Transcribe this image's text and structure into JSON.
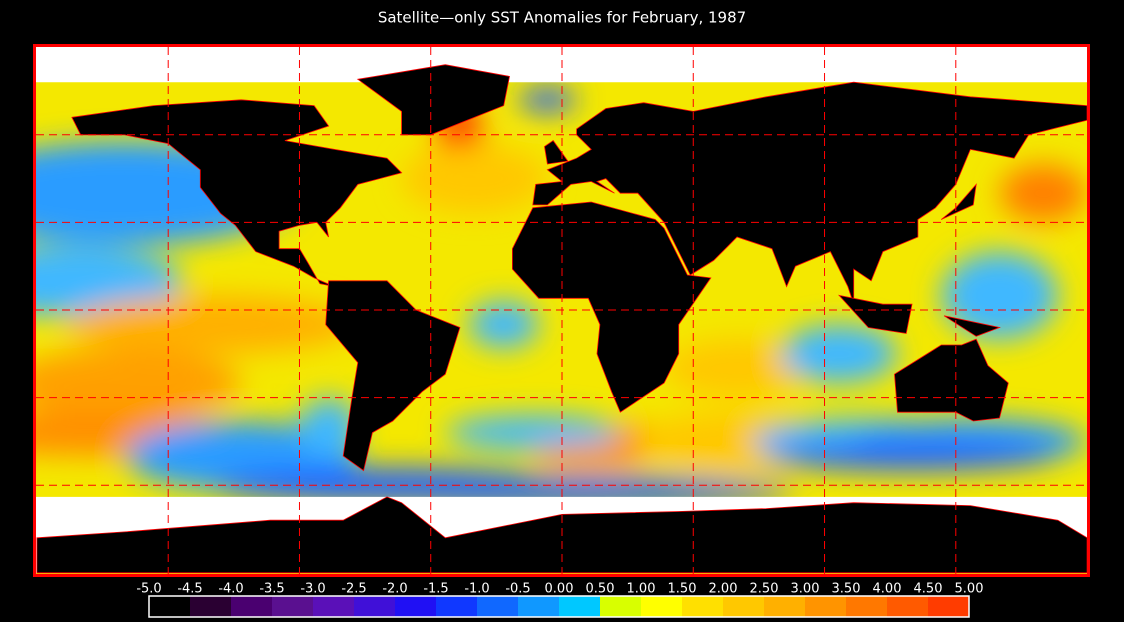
{
  "title": "Satellite—only SST Anomalies for February, 1987",
  "legend": {
    "ticks": [
      {
        "value": -5.0,
        "label": "-5.0"
      },
      {
        "value": -4.5,
        "label": "-4.5"
      },
      {
        "value": -4.0,
        "label": "-4.0"
      },
      {
        "value": -3.5,
        "label": "-3.5"
      },
      {
        "value": -3.0,
        "label": "-3.0"
      },
      {
        "value": -2.5,
        "label": "-2.5"
      },
      {
        "value": -2.0,
        "label": "-2.0"
      },
      {
        "value": -1.5,
        "label": "-1.5"
      },
      {
        "value": -1.0,
        "label": "-1.0"
      },
      {
        "value": -0.5,
        "label": "-0.5"
      },
      {
        "value": 0,
        "label": "0.00"
      },
      {
        "value": 0.5,
        "label": "0.50"
      },
      {
        "value": 1.0,
        "label": "1.00"
      },
      {
        "value": 1.5,
        "label": "1.50"
      },
      {
        "value": 2.0,
        "label": "2.00"
      },
      {
        "value": 2.5,
        "label": "2.50"
      },
      {
        "value": 3.0,
        "label": "3.00"
      },
      {
        "value": 3.5,
        "label": "3.50"
      },
      {
        "value": 4.0,
        "label": "4.00"
      },
      {
        "value": 4.5,
        "label": "4.50"
      },
      {
        "value": 5.0,
        "label": "5.00"
      }
    ],
    "colors": [
      "#000000",
      "#2a0032",
      "#4a0070",
      "#5a1090",
      "#5a10b8",
      "#4010d8",
      "#2010f4",
      "#1038ff",
      "#1068ff",
      "#1098ff",
      "#00c8ff",
      "#d8ff00",
      "#ffff00",
      "#ffe000",
      "#ffc800",
      "#ffb000",
      "#ff9400",
      "#ff7800",
      "#ff5a00",
      "#ff3c00",
      "#ff1e00"
    ]
  }
}
